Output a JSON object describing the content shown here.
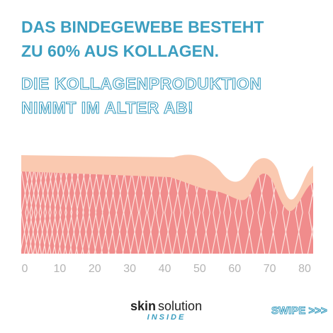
{
  "headline": [
    "DAS BINDEGEWEBE BESTEHT",
    "ZU 60% AUS KOLLAGEN."
  ],
  "subheadline": [
    "DIE KOLLAGENPRODUKTION",
    "NIMMT IM ALTER AB!"
  ],
  "age_axis": [
    "0",
    "10",
    "20",
    "30",
    "40",
    "50",
    "60",
    "70",
    "80"
  ],
  "logo": {
    "brand": "skin",
    "name": "solution",
    "tagline": "INSIDE"
  },
  "swipe": "SWIPE >>>"
}
